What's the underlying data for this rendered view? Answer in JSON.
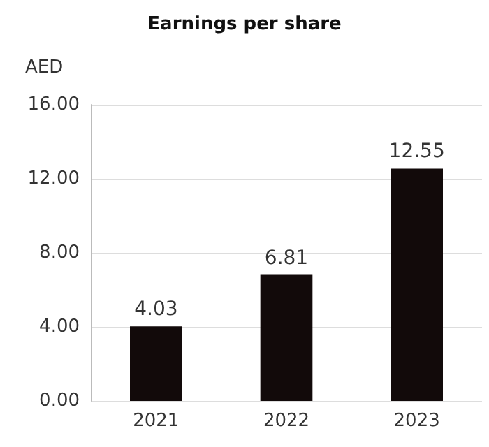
{
  "chart_data": {
    "type": "bar",
    "title": "Earnings per share",
    "ylabel": "AED",
    "categories": [
      "2021",
      "2022",
      "2023"
    ],
    "values": [
      4.03,
      6.81,
      12.55
    ],
    "color": "#120a0a",
    "ylim": [
      0,
      16
    ],
    "yticks": [
      {
        "value": 0,
        "label": "0.00"
      },
      {
        "value": 4,
        "label": "4.00"
      },
      {
        "value": 8,
        "label": "8.00"
      },
      {
        "value": 12,
        "label": "12.00"
      },
      {
        "value": 16,
        "label": "16.00"
      }
    ],
    "grid": "y",
    "data_labels": true
  }
}
